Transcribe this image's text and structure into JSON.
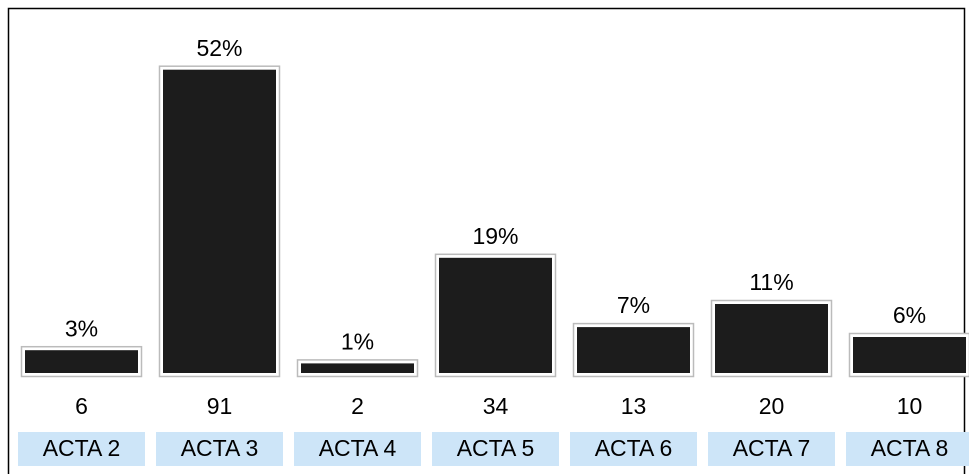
{
  "chart_data": {
    "type": "bar",
    "categories": [
      "ACTA 2",
      "ACTA 3",
      "ACTA 4",
      "ACTA 5",
      "ACTA 6",
      "ACTA 7",
      "ACTA 8"
    ],
    "values": [
      6,
      91,
      2,
      34,
      13,
      20,
      10
    ],
    "shares": [
      3,
      52,
      1,
      19,
      7,
      11,
      6
    ],
    "share_labels": [
      "3%",
      "52%",
      "1%",
      "19%",
      "7%",
      "11%",
      "6%"
    ],
    "color": "#1c1c1c"
  }
}
